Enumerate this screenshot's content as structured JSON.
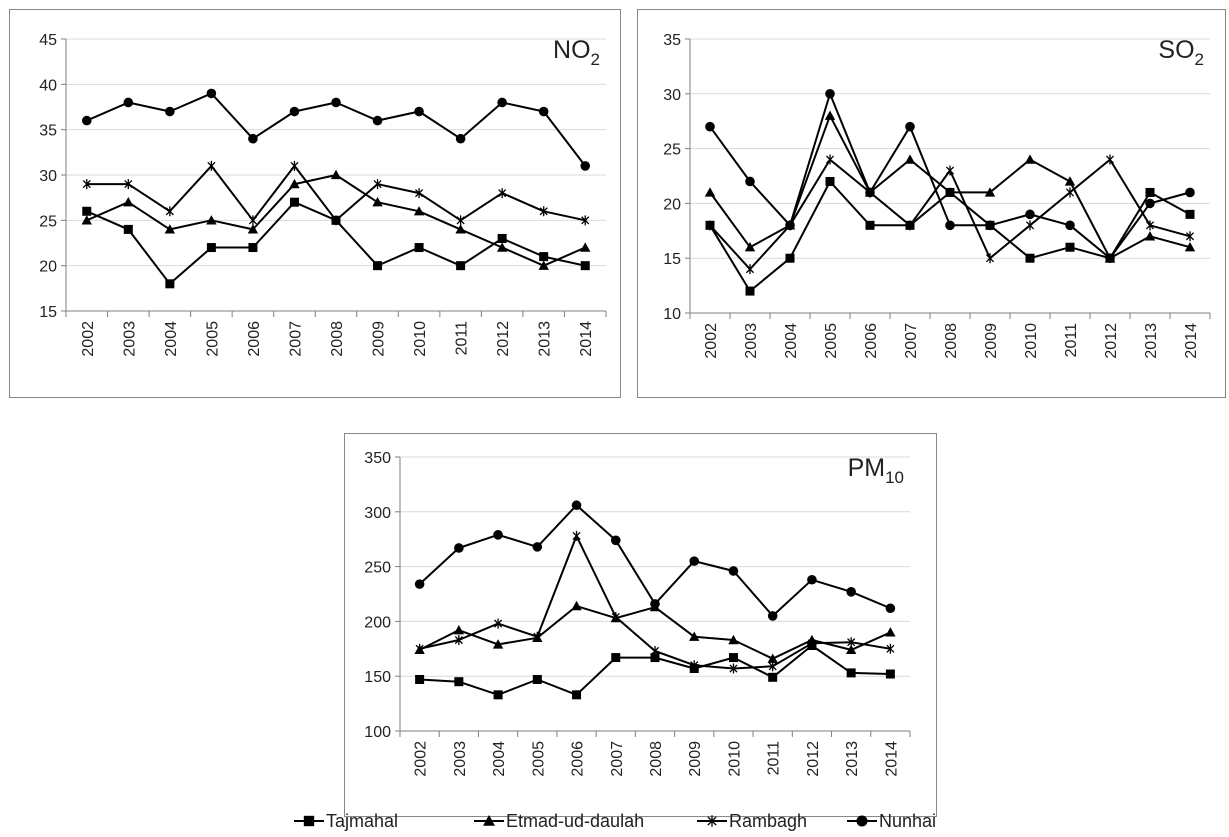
{
  "legend": {
    "placement": "bottom",
    "entries": [
      {
        "name": "Tajmahal",
        "marker": "square"
      },
      {
        "name": "Etmad-ud-daulah",
        "marker": "triangle"
      },
      {
        "name": "Rambagh",
        "marker": "asterisk"
      },
      {
        "name": "Nunhai",
        "marker": "circle"
      }
    ]
  },
  "colors": {
    "line": "#000000",
    "grid": "#d9d9d9",
    "frame": "#888888",
    "axis": "#7f7f7f"
  },
  "chart_data": [
    {
      "type": "line",
      "title_main": "NO",
      "title_sub": "2",
      "x": [
        "2002",
        "2003",
        "2004",
        "2005",
        "2006",
        "2007",
        "2008",
        "2009",
        "2010",
        "2011",
        "2012",
        "2013",
        "2014"
      ],
      "ylim": [
        15,
        45
      ],
      "yticks": [
        15,
        20,
        25,
        30,
        35,
        40,
        45
      ],
      "grid": true,
      "series": [
        {
          "name": "Tajmahal",
          "marker": "square",
          "values": [
            26,
            24,
            18,
            22,
            22,
            27,
            25,
            20,
            22,
            20,
            23,
            21,
            20
          ]
        },
        {
          "name": "Etmad-ud-daulah",
          "marker": "triangle",
          "values": [
            25,
            27,
            24,
            25,
            24,
            29,
            30,
            27,
            26,
            24,
            22,
            20,
            22
          ]
        },
        {
          "name": "Rambagh",
          "marker": "asterisk",
          "values": [
            29,
            29,
            26,
            31,
            25,
            31,
            25,
            29,
            28,
            25,
            28,
            26,
            25
          ]
        },
        {
          "name": "Nunhai",
          "marker": "circle",
          "values": [
            36,
            38,
            37,
            39,
            34,
            37,
            38,
            36,
            37,
            34,
            38,
            37,
            31
          ]
        }
      ]
    },
    {
      "type": "line",
      "title_main": "SO",
      "title_sub": "2",
      "x": [
        "2002",
        "2003",
        "2004",
        "2005",
        "2006",
        "2007",
        "2008",
        "2009",
        "2010",
        "2011",
        "2012",
        "2013",
        "2014"
      ],
      "ylim": [
        10,
        35
      ],
      "yticks": [
        10,
        15,
        20,
        25,
        30,
        35
      ],
      "grid": true,
      "series": [
        {
          "name": "Tajmahal",
          "marker": "square",
          "values": [
            18,
            12,
            15,
            22,
            18,
            18,
            21,
            18,
            15,
            16,
            15,
            21,
            19
          ]
        },
        {
          "name": "Etmad-ud-daulah",
          "marker": "triangle",
          "values": [
            21,
            16,
            18,
            28,
            21,
            24,
            21,
            21,
            24,
            22,
            15,
            17,
            16
          ]
        },
        {
          "name": "Rambagh",
          "marker": "asterisk",
          "values": [
            18,
            14,
            18,
            24,
            21,
            18,
            23,
            15,
            18,
            21,
            24,
            18,
            17
          ]
        },
        {
          "name": "Nunhai",
          "marker": "circle",
          "values": [
            27,
            22,
            18,
            30,
            21,
            27,
            18,
            18,
            19,
            18,
            15,
            20,
            21
          ]
        }
      ]
    },
    {
      "type": "line",
      "title_main": "PM",
      "title_sub": "10",
      "x": [
        "2002",
        "2003",
        "2004",
        "2005",
        "2006",
        "2007",
        "2008",
        "2009",
        "2010",
        "2011",
        "2012",
        "2013",
        "2014"
      ],
      "ylim": [
        100,
        350
      ],
      "yticks": [
        100,
        150,
        200,
        250,
        300,
        350
      ],
      "grid": true,
      "series": [
        {
          "name": "Tajmahal",
          "marker": "square",
          "values": [
            147,
            145,
            133,
            147,
            133,
            167,
            167,
            157,
            167,
            149,
            178,
            153,
            152
          ]
        },
        {
          "name": "Etmad-ud-daulah",
          "marker": "triangle",
          "values": [
            174,
            192,
            179,
            185,
            214,
            203,
            213,
            186,
            183,
            166,
            183,
            174,
            190
          ]
        },
        {
          "name": "Rambagh",
          "marker": "asterisk",
          "values": [
            175,
            183,
            198,
            186,
            278,
            204,
            173,
            160,
            157,
            159,
            180,
            181,
            175
          ]
        },
        {
          "name": "Nunhai",
          "marker": "circle",
          "values": [
            234,
            267,
            279,
            268,
            306,
            274,
            216,
            255,
            246,
            205,
            238,
            227,
            212
          ]
        }
      ]
    }
  ]
}
